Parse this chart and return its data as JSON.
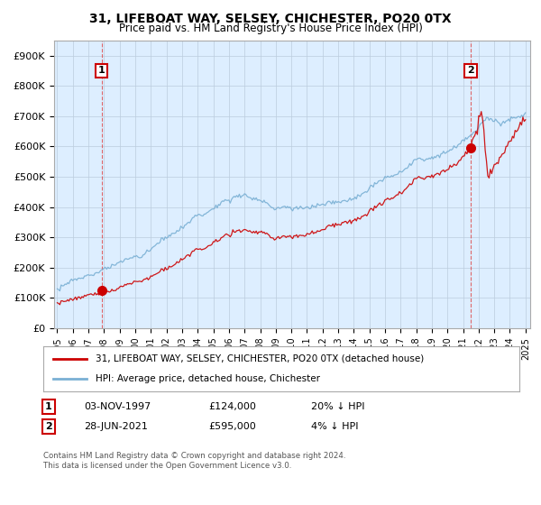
{
  "title": "31, LIFEBOAT WAY, SELSEY, CHICHESTER, PO20 0TX",
  "subtitle": "Price paid vs. HM Land Registry's House Price Index (HPI)",
  "ylim": [
    0,
    950000
  ],
  "yticks": [
    0,
    100000,
    200000,
    300000,
    400000,
    500000,
    600000,
    700000,
    800000,
    900000
  ],
  "ytick_labels": [
    "£0",
    "£100K",
    "£200K",
    "£300K",
    "£400K",
    "£500K",
    "£600K",
    "£700K",
    "£800K",
    "£900K"
  ],
  "sale1_date": 1997.84,
  "sale1_price": 124000,
  "sale1_label": "1",
  "sale2_date": 2021.49,
  "sale2_price": 595000,
  "sale2_label": "2",
  "line_color_property": "#cc0000",
  "line_color_hpi": "#7ab0d4",
  "plot_bg_color": "#ddeeff",
  "legend_property": "31, LIFEBOAT WAY, SELSEY, CHICHESTER, PO20 0TX (detached house)",
  "legend_hpi": "HPI: Average price, detached house, Chichester",
  "row1_num": "1",
  "row1_date": "03-NOV-1997",
  "row1_price": "£124,000",
  "row1_hpi": "20% ↓ HPI",
  "row2_num": "2",
  "row2_date": "28-JUN-2021",
  "row2_price": "£595,000",
  "row2_hpi": "4% ↓ HPI",
  "footer": "Contains HM Land Registry data © Crown copyright and database right 2024.\nThis data is licensed under the Open Government Licence v3.0.",
  "background_color": "#ffffff",
  "grid_color": "#bbccdd",
  "vline_color": "#dd4444"
}
